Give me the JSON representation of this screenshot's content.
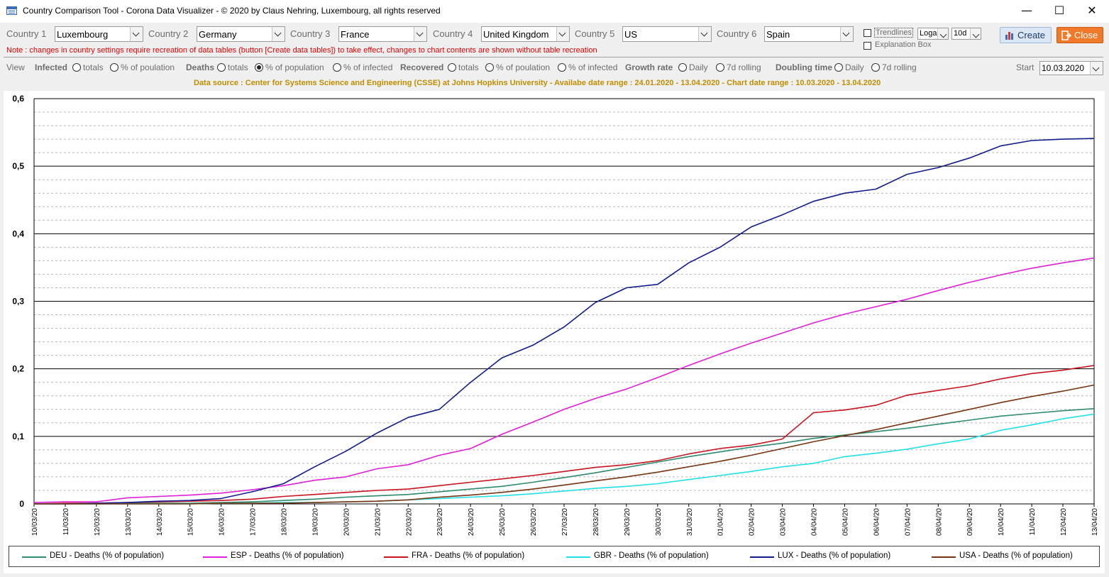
{
  "window": {
    "title": "Country Comparison Tool - Corona Data Visualizer - © 2020 by Claus Nehring, Luxembourg, all rights reserved",
    "minimize": "—",
    "maximize": "☐",
    "close": "✕"
  },
  "countries": [
    {
      "label": "Country 1",
      "value": "Luxembourg"
    },
    {
      "label": "Country 2",
      "value": "Germany"
    },
    {
      "label": "Country 3",
      "value": "France"
    },
    {
      "label": "Country 4",
      "value": "United Kingdom"
    },
    {
      "label": "Country 5",
      "value": "US"
    },
    {
      "label": "Country 6",
      "value": "Spain"
    }
  ],
  "options": {
    "trendlines_label": "Trendlines",
    "scale_value": "Loga",
    "period_value": "10d",
    "explanation_label": "Explanation Box"
  },
  "buttons": {
    "create": "Create",
    "close": "Close"
  },
  "note": "Note : changes in country settings require recreation of data tables (button [Create data tables]) to take effect, changes to chart contents are shown without table recreation",
  "view": {
    "label": "View",
    "infected": "Infected",
    "deaths": "Deaths",
    "recovered": "Recovered",
    "growth_rate": "Growth rate",
    "doubling_time": "Doubling time",
    "totals": "totals",
    "pct_population_1": "% of poulation",
    "pct_population_2": "% of population",
    "pct_population_3": "% of poulation",
    "pct_infected_1": "% of infected",
    "pct_infected_2": "% of infected",
    "daily": "Daily",
    "rolling": "7d rolling",
    "start_label": "Start",
    "start_value": "10.03.2020"
  },
  "data_source": "Data source : Center for Systems Science and Engineering (CSSE) at Johns Hopkins University  -  Availabe date range : 24.01.2020 - 13.04.2020  -  Chart date range : 10.03.2020 - 13.04.2020",
  "colors": {
    "DEU": "#2e8b6e",
    "ESP": "#e020d8",
    "FRA": "#c8141e",
    "GBR": "#22e0e8",
    "LUX": "#121c8c",
    "USA": "#7a3412",
    "datasource": "#bf8e00",
    "note": "#e00000"
  },
  "chart_data": {
    "type": "line",
    "ylim": [
      0,
      0.6
    ],
    "yticks": [
      "0",
      "0,1",
      "0,2",
      "0,3",
      "0,4",
      "0,5",
      "0,6"
    ],
    "grid": true,
    "legend_position": "bottom",
    "x": [
      "10/03/20",
      "11/03/20",
      "12/03/20",
      "13/03/20",
      "14/03/20",
      "15/03/20",
      "16/03/20",
      "17/03/20",
      "18/03/20",
      "19/03/20",
      "20/03/20",
      "21/03/20",
      "22/03/20",
      "23/03/20",
      "24/03/20",
      "25/03/20",
      "26/03/20",
      "27/03/20",
      "28/03/20",
      "29/03/20",
      "30/03/20",
      "31/03/20",
      "01/04/20",
      "02/04/20",
      "03/04/20",
      "04/04/20",
      "05/04/20",
      "06/04/20",
      "07/04/20",
      "08/04/20",
      "09/04/20",
      "10/04/20",
      "11/04/20",
      "12/04/20",
      "13/04/20"
    ],
    "series": [
      {
        "name": "DEU - Deaths (% of population)",
        "key": "DEU",
        "values": [
          0.0,
          0.0,
          0.0,
          0.001,
          0.001,
          0.001,
          0.002,
          0.003,
          0.005,
          0.007,
          0.01,
          0.012,
          0.014,
          0.018,
          0.022,
          0.026,
          0.032,
          0.039,
          0.046,
          0.054,
          0.062,
          0.07,
          0.077,
          0.084,
          0.09,
          0.097,
          0.102,
          0.107,
          0.112,
          0.118,
          0.124,
          0.13,
          0.134,
          0.138,
          0.141
        ]
      },
      {
        "name": "ESP - Deaths (% of population)",
        "key": "ESP",
        "values": [
          0.002,
          0.003,
          0.003,
          0.009,
          0.011,
          0.013,
          0.016,
          0.021,
          0.027,
          0.035,
          0.04,
          0.052,
          0.058,
          0.072,
          0.082,
          0.103,
          0.121,
          0.14,
          0.156,
          0.17,
          0.187,
          0.205,
          0.222,
          0.238,
          0.253,
          0.268,
          0.281,
          0.292,
          0.303,
          0.316,
          0.328,
          0.339,
          0.349,
          0.357,
          0.364
        ]
      },
      {
        "name": "FRA - Deaths (% of population)",
        "key": "FRA",
        "values": [
          0.0,
          0.001,
          0.001,
          0.002,
          0.003,
          0.004,
          0.005,
          0.007,
          0.011,
          0.014,
          0.017,
          0.02,
          0.022,
          0.027,
          0.032,
          0.037,
          0.042,
          0.048,
          0.054,
          0.058,
          0.064,
          0.074,
          0.082,
          0.087,
          0.096,
          0.135,
          0.139,
          0.146,
          0.161,
          0.168,
          0.175,
          0.185,
          0.193,
          0.198,
          0.205
        ]
      },
      {
        "name": "GBR - Deaths (% of population)",
        "key": "GBR",
        "values": [
          0.0,
          0.0,
          0.0,
          0.0,
          0.0,
          0.0,
          0.001,
          0.001,
          0.002,
          0.002,
          0.003,
          0.004,
          0.006,
          0.008,
          0.01,
          0.012,
          0.015,
          0.019,
          0.023,
          0.026,
          0.03,
          0.036,
          0.042,
          0.048,
          0.055,
          0.06,
          0.07,
          0.075,
          0.081,
          0.089,
          0.096,
          0.109,
          0.117,
          0.126,
          0.133
        ]
      },
      {
        "name": "LUX - Deaths (% of population)",
        "key": "LUX",
        "values": [
          0.0,
          0.0,
          0.001,
          0.002,
          0.004,
          0.005,
          0.008,
          0.018,
          0.03,
          0.055,
          0.078,
          0.105,
          0.128,
          0.14,
          0.18,
          0.216,
          0.235,
          0.262,
          0.298,
          0.32,
          0.325,
          0.357,
          0.38,
          0.41,
          0.428,
          0.448,
          0.46,
          0.466,
          0.488,
          0.498,
          0.512,
          0.53,
          0.538,
          0.54,
          0.541
        ]
      },
      {
        "name": "USA - Deaths (% of population)",
        "key": "USA",
        "values": [
          0.0,
          0.0,
          0.0,
          0.0,
          0.0,
          0.0,
          0.001,
          0.001,
          0.001,
          0.002,
          0.003,
          0.004,
          0.006,
          0.01,
          0.013,
          0.017,
          0.022,
          0.028,
          0.034,
          0.04,
          0.047,
          0.055,
          0.063,
          0.072,
          0.082,
          0.092,
          0.101,
          0.11,
          0.12,
          0.13,
          0.14,
          0.15,
          0.159,
          0.167,
          0.176
        ]
      }
    ]
  }
}
